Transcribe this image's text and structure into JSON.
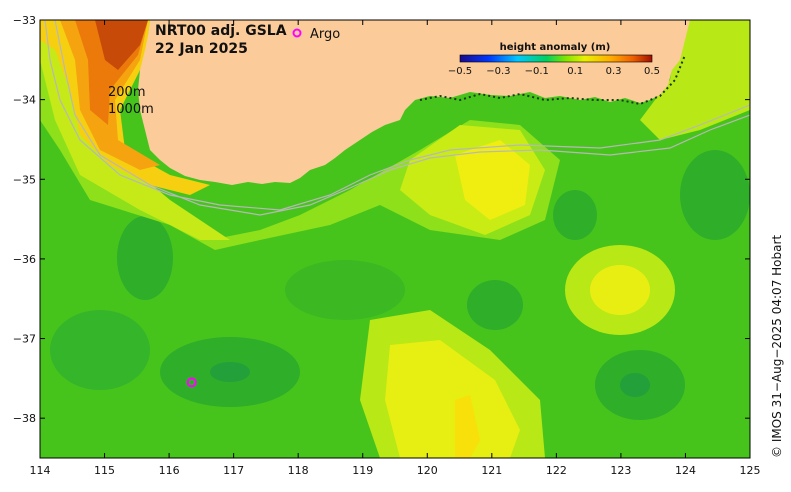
{
  "title": {
    "line1": "NRT00 adj. GSLA",
    "line2": "22 Jan 2025"
  },
  "legend": {
    "argo_label": "Argo",
    "argo_color": "#ff00ff"
  },
  "contours": {
    "label_200": "200m",
    "label_1000": "1000m"
  },
  "colorbar": {
    "title": "height anomaly (m)",
    "ticks": [
      "−0.5",
      "−0.3",
      "−0.1",
      "0.1",
      "0.3",
      "0.5"
    ],
    "tick_values": [
      -0.5,
      -0.3,
      -0.1,
      0.1,
      0.3,
      0.5
    ]
  },
  "credit": "©  IMOS 31−Aug−2025 04:07 Hobart",
  "axes": {
    "x_ticks": [
      "114",
      "115",
      "116",
      "117",
      "118",
      "119",
      "120",
      "121",
      "122",
      "123",
      "124",
      "125"
    ],
    "x_values": [
      114,
      115,
      116,
      117,
      118,
      119,
      120,
      121,
      122,
      123,
      124,
      125
    ],
    "y_ticks": [
      "−33",
      "−34",
      "−35",
      "−36",
      "−37",
      "−38"
    ],
    "y_values": [
      -33,
      -34,
      -35,
      -36,
      -37,
      -38
    ],
    "xlim": [
      114,
      125
    ],
    "ylim": [
      -38.5,
      -33
    ]
  },
  "argo_floats": [
    {
      "lon": 116.35,
      "lat": -37.55
    }
  ],
  "colors": {
    "land": "#fbcb9a",
    "ocean_base": "#4fd11a",
    "shelf_grey": "#b8b8b8"
  }
}
